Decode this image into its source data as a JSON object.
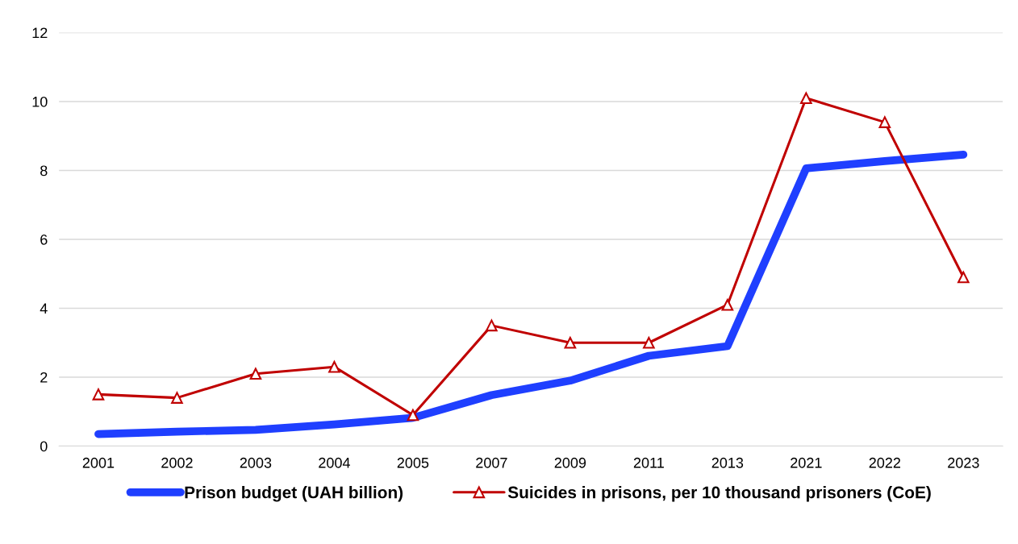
{
  "chart_data": {
    "type": "line",
    "categories": [
      "2001",
      "2002",
      "2003",
      "2004",
      "2005",
      "2007",
      "2009",
      "2011",
      "2013",
      "2021",
      "2022",
      "2023"
    ],
    "series": [
      {
        "name": "Prison budget (UAH billion)",
        "color": "#1f3fff",
        "marker": "none",
        "values": [
          0.35,
          0.42,
          0.47,
          0.63,
          0.82,
          1.48,
          1.9,
          2.62,
          2.9,
          8.06,
          8.27,
          8.46
        ]
      },
      {
        "name": "Suicides in prisons, per 10 thousand prisoners (CoE)",
        "color": "#c00000",
        "marker": "triangle",
        "values": [
          1.5,
          1.4,
          2.1,
          2.3,
          0.9,
          3.5,
          3.0,
          3.0,
          4.1,
          10.1,
          9.4,
          4.9
        ]
      }
    ],
    "ylim": [
      0,
      12
    ],
    "yticks": [
      0,
      2,
      4,
      6,
      8,
      10,
      12
    ],
    "grid": "y",
    "legend": "bottom",
    "line_style": "solid"
  }
}
